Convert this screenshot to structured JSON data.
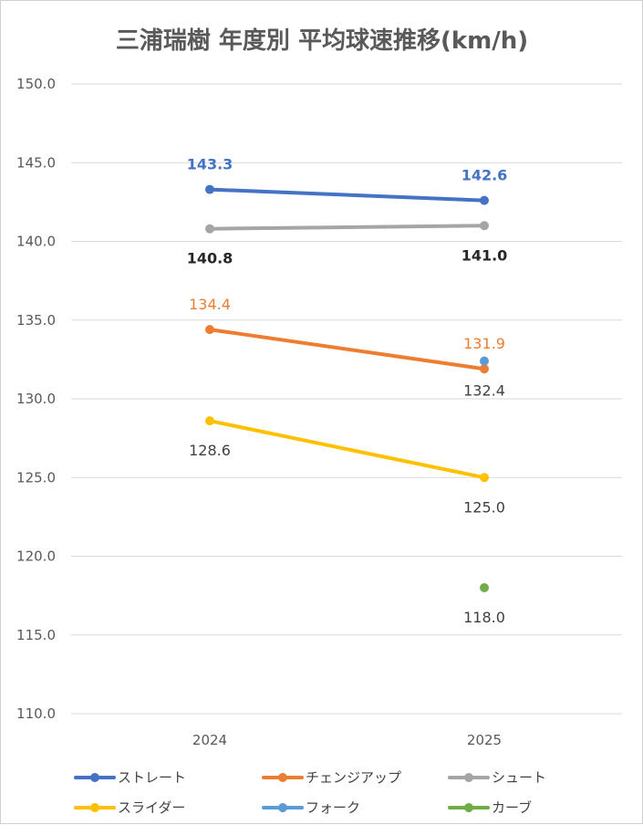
{
  "chart_data": {
    "type": "line",
    "title": "三浦瑞樹 年度別 平均球速推移(km/h)",
    "xlabel": "",
    "ylabel": "",
    "categories": [
      "2024",
      "2025"
    ],
    "ylim": [
      110.0,
      150.0
    ],
    "ytick_step": 5.0,
    "yticks": [
      "150.0",
      "145.0",
      "140.0",
      "135.0",
      "130.0",
      "125.0",
      "120.0",
      "115.0",
      "110.0"
    ],
    "grid": true,
    "legend_position": "bottom",
    "series": [
      {
        "name": "ストレート",
        "color": "#4472C4",
        "values": [
          143.3,
          142.6
        ],
        "labels": [
          "143.3",
          "142.6"
        ],
        "label_color": "#4472C4",
        "label_pos": "above",
        "label_bold": true
      },
      {
        "name": "チェンジアップ",
        "color": "#ED7D31",
        "values": [
          134.4,
          131.9
        ],
        "labels": [
          "134.4",
          "131.9"
        ],
        "label_color": "#ED7D31",
        "label_pos": "above",
        "label_bold": false
      },
      {
        "name": "シュート",
        "color": "#A5A5A5",
        "values": [
          140.8,
          141.0
        ],
        "labels": [
          "140.8",
          "141.0"
        ],
        "label_color": "#262626",
        "label_pos": "below",
        "label_bold": true
      },
      {
        "name": "スライダー",
        "color": "#FFC000",
        "values": [
          128.6,
          125.0
        ],
        "labels": [
          "128.6",
          "125.0"
        ],
        "label_color": "#404040",
        "label_pos": "below",
        "label_bold": false
      },
      {
        "name": "フォーク",
        "color": "#5B9BD5",
        "values": [
          null,
          132.4
        ],
        "labels": [
          null,
          "132.4"
        ],
        "label_color": "#404040",
        "label_pos": "below",
        "label_bold": false
      },
      {
        "name": "カーブ",
        "color": "#70AD47",
        "values": [
          null,
          118.0
        ],
        "labels": [
          null,
          "118.0"
        ],
        "label_color": "#404040",
        "label_pos": "below",
        "label_bold": false
      }
    ]
  }
}
